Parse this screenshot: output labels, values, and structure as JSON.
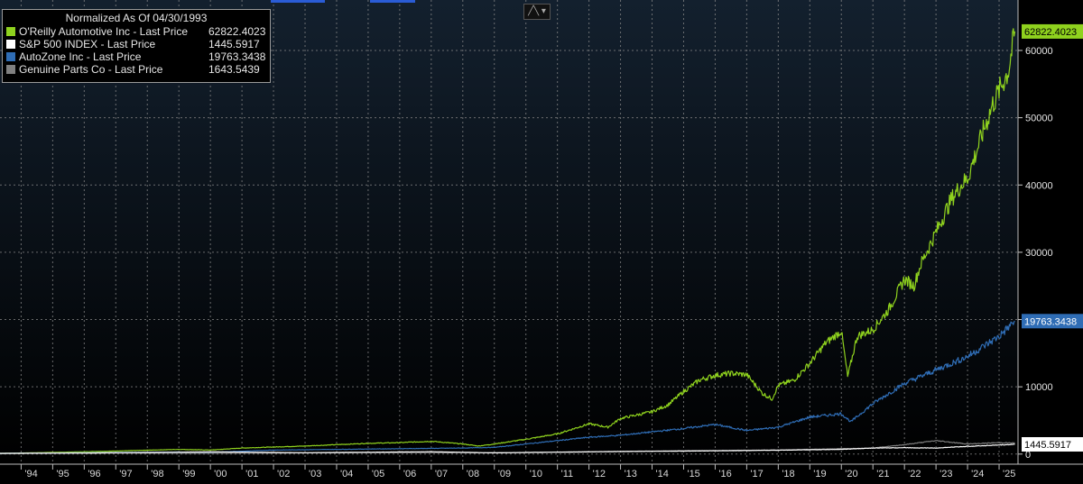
{
  "legend": {
    "title": "Normalized As Of 04/30/1993",
    "items": [
      {
        "label": "O'Reilly Automotive Inc - Last Price",
        "value": "62822.4023",
        "color": "#8fd21e"
      },
      {
        "label": "S&P 500 INDEX - Last Price",
        "value": "1445.5917",
        "color": "#ffffff"
      },
      {
        "label": "AutoZone Inc - Last Price",
        "value": "19763.3438",
        "color": "#2f6db5"
      },
      {
        "label": "Genuine Parts Co - Last Price",
        "value": "1643.5439",
        "color": "#808080"
      }
    ]
  },
  "toolbar": {
    "chart_type_icon": "line-chart-icon",
    "dropdown_icon": "chevron-down-icon"
  },
  "chart_data": {
    "type": "line",
    "ylim": [
      -1500,
      67500
    ],
    "xlim": [
      1993.33,
      2025.6
    ],
    "y_ticks": [
      0,
      10000,
      20000,
      30000,
      40000,
      50000,
      60000
    ],
    "y_tick_labels": [
      "0",
      "10000",
      "20000",
      "30000",
      "40000",
      "50000",
      "60000"
    ],
    "x_ticks": [
      1994,
      1995,
      1996,
      1997,
      1998,
      1999,
      2000,
      2001,
      2002,
      2003,
      2004,
      2005,
      2006,
      2007,
      2008,
      2009,
      2010,
      2011,
      2012,
      2013,
      2014,
      2015,
      2016,
      2017,
      2018,
      2019,
      2020,
      2021,
      2022,
      2023,
      2024,
      2025
    ],
    "x_tick_labels": [
      "'94",
      "'95",
      "'96",
      "'97",
      "'98",
      "'99",
      "'00",
      "'01",
      "'02",
      "'03",
      "'04",
      "'05",
      "'06",
      "'07",
      "'08",
      "'09",
      "'10",
      "'11",
      "'12",
      "'13",
      "'14",
      "'15",
      "'16",
      "'17",
      "'18",
      "'19",
      "'20",
      "'21",
      "'22",
      "'23",
      "'24",
      "'25"
    ],
    "grid": true,
    "legend_position": "top-left",
    "series": [
      {
        "name": "O'Reilly Automotive Inc - Last Price",
        "color": "#8fd21e",
        "last_value_label": "62822.4023",
        "x": [
          1993.33,
          1995,
          1997,
          1999,
          2000,
          2001,
          2003,
          2005,
          2006,
          2007,
          2008,
          2008.5,
          2009,
          2010,
          2011,
          2012,
          2012.6,
          2013,
          2014,
          2014.5,
          2015,
          2015.5,
          2016,
          2016.5,
          2017,
          2017.5,
          2017.8,
          2018,
          2018.5,
          2019,
          2019.5,
          2020,
          2020.2,
          2020.5,
          2021,
          2021.5,
          2022,
          2022.3,
          2022.5,
          2023,
          2023.5,
          2023.8,
          2024,
          2024.5,
          2024.8,
          2025.3,
          2025.5
        ],
        "y": [
          100,
          250,
          450,
          700,
          600,
          900,
          1200,
          1600,
          1700,
          1900,
          1500,
          1200,
          1500,
          2200,
          3000,
          4500,
          4000,
          5300,
          6300,
          7300,
          9300,
          11000,
          11700,
          12000,
          11800,
          9000,
          8200,
          10200,
          11000,
          13500,
          16500,
          18300,
          11500,
          17500,
          18500,
          21500,
          26000,
          25000,
          28000,
          33000,
          38000,
          40000,
          41000,
          48000,
          52000,
          57000,
          62822
        ]
      },
      {
        "name": "AutoZone Inc - Last Price",
        "color": "#2f6db5",
        "last_value_label": "19763.3438",
        "x": [
          1993.33,
          1996,
          1999,
          2000,
          2002,
          2004,
          2006,
          2008,
          2009,
          2010,
          2011,
          2012,
          2013,
          2014,
          2015,
          2016,
          2017,
          2018,
          2019,
          2020,
          2020.3,
          2021,
          2022,
          2023,
          2024,
          2025,
          2025.5
        ],
        "y": [
          100,
          200,
          300,
          250,
          600,
          700,
          800,
          900,
          1000,
          1500,
          2000,
          2500,
          2800,
          3300,
          3800,
          4400,
          3500,
          4000,
          5500,
          6000,
          4800,
          7500,
          10500,
          12500,
          14500,
          17500,
          19763
        ]
      },
      {
        "name": "Genuine Parts Co - Last Price",
        "color": "#808080",
        "last_value_label": "",
        "x": [
          1993.33,
          1997,
          2000,
          2003,
          2006,
          2009,
          2012,
          2015,
          2018,
          2021,
          2022,
          2023,
          2024,
          2025,
          2025.5
        ],
        "y": [
          100,
          150,
          120,
          180,
          220,
          200,
          350,
          500,
          600,
          900,
          1400,
          2000,
          1500,
          1700,
          1644
        ]
      },
      {
        "name": "S&P 500 INDEX - Last Price",
        "color": "#ffffff",
        "last_value_label": "1445.5917",
        "x": [
          1993.33,
          1996,
          2000,
          2003,
          2007,
          2009,
          2013,
          2016,
          2018,
          2020,
          2021,
          2022,
          2023,
          2024,
          2025,
          2025.5
        ],
        "y": [
          100,
          150,
          330,
          200,
          350,
          180,
          380,
          480,
          580,
          700,
          900,
          950,
          900,
          1150,
          1350,
          1446
        ]
      }
    ]
  }
}
